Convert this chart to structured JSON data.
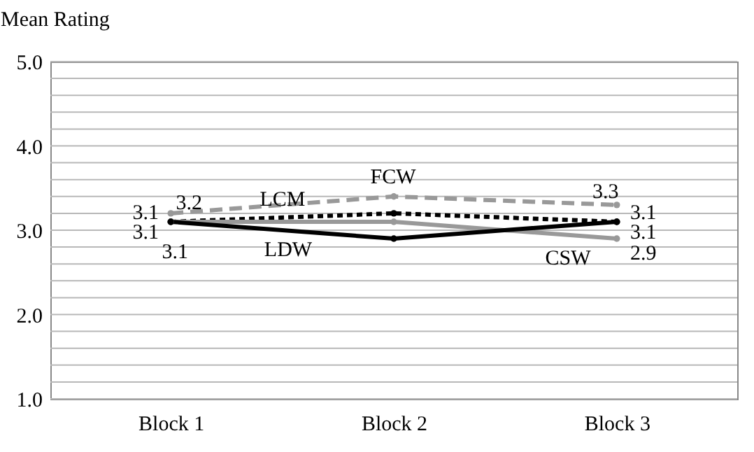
{
  "chart_data": {
    "type": "line",
    "ylabel": "Mean Rating",
    "categories": [
      "Block 1",
      "Block 2",
      "Block 3"
    ],
    "ylim": [
      1,
      5
    ],
    "yticks": [
      {
        "value": 1,
        "label": "1.0"
      },
      {
        "value": 1.2,
        "label": null
      },
      {
        "value": 1.4,
        "label": null
      },
      {
        "value": 1.6,
        "label": null
      },
      {
        "value": 1.8,
        "label": null
      },
      {
        "value": 2,
        "label": "2.0"
      },
      {
        "value": 2.2,
        "label": null
      },
      {
        "value": 2.4,
        "label": null
      },
      {
        "value": 2.6,
        "label": null
      },
      {
        "value": 2.8,
        "label": null
      },
      {
        "value": 3,
        "label": "3.0"
      },
      {
        "value": 3.2,
        "label": null
      },
      {
        "value": 3.4,
        "label": null
      },
      {
        "value": 3.6,
        "label": null
      },
      {
        "value": 3.8,
        "label": null
      },
      {
        "value": 4,
        "label": "4.0"
      },
      {
        "value": 4.2,
        "label": null
      },
      {
        "value": 4.4,
        "label": null
      },
      {
        "value": 4.6,
        "label": null
      },
      {
        "value": 4.8,
        "label": null
      },
      {
        "value": 5,
        "label": "5.0"
      }
    ],
    "grid": "y",
    "marker": "circle",
    "series": [
      {
        "name": "FCW",
        "color": "#999999",
        "line_style": "dashed",
        "values": [
          3.2,
          3.4,
          3.3
        ],
        "value_labels": [
          "3.2",
          null,
          "3.3"
        ]
      },
      {
        "name": "LCM",
        "color": "#000000",
        "line_style": "dotted",
        "values": [
          3.1,
          3.2,
          3.1
        ],
        "value_labels": [
          "3.1",
          null,
          "3.1"
        ]
      },
      {
        "name": "CSW",
        "color": "#999999",
        "line_style": "solid",
        "values": [
          3.1,
          3.1,
          2.9
        ],
        "value_labels": [
          "3.1",
          null,
          "2.9"
        ]
      },
      {
        "name": "LDW",
        "color": "#000000",
        "line_style": "solid",
        "values": [
          3.1,
          2.9,
          3.1
        ],
        "value_labels": [
          "3.1",
          null,
          "3.1"
        ]
      }
    ]
  }
}
